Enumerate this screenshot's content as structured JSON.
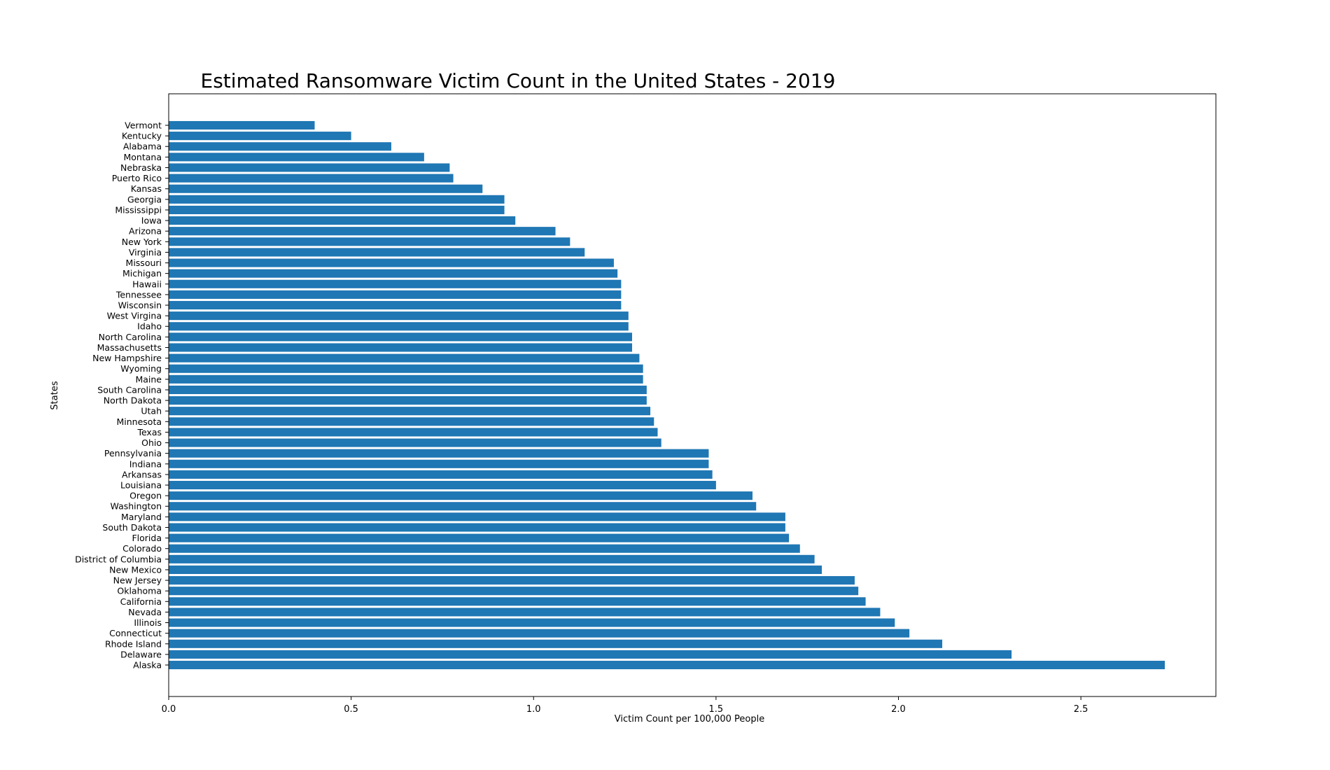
{
  "colors": {
    "bar": "#1f77b4",
    "axes": "#000000",
    "background": "#ffffff"
  },
  "chart_data": {
    "type": "bar",
    "orientation": "horizontal",
    "title": "Estimated Ransomware Victim Count in the United States - 2019",
    "xlabel": "Victim Count per 100,000 People",
    "ylabel": "States",
    "xlim": [
      0,
      2.87
    ],
    "xticks": [
      0.0,
      0.5,
      1.0,
      1.5,
      2.0,
      2.5
    ],
    "xtick_labels": [
      "0.0",
      "0.5",
      "1.0",
      "1.5",
      "2.0",
      "2.5"
    ],
    "grid": false,
    "legend": "none",
    "categories": [
      "Vermont",
      "Kentucky",
      "Alabama",
      "Montana",
      "Nebraska",
      "Puerto Rico",
      "Kansas",
      "Georgia",
      "Mississippi",
      "Iowa",
      "Arizona",
      "New York",
      "Virginia",
      "Missouri",
      "Michigan",
      "Hawaii",
      "Tennessee",
      "Wisconsin",
      "West Virgina",
      "Idaho",
      "North Carolina",
      "Massachusetts",
      "New Hampshire",
      "Wyoming",
      "Maine",
      "South Carolina",
      "North Dakota",
      "Utah",
      "Minnesota",
      "Texas",
      "Ohio",
      "Pennsylvania",
      "Indiana",
      "Arkansas",
      "Louisiana",
      "Oregon",
      "Washington",
      "Maryland",
      "South Dakota",
      "Florida",
      "Colorado",
      "District of Columbia",
      "New Mexico",
      "New Jersey",
      "Oklahoma",
      "California",
      "Nevada",
      "Illinois",
      "Connecticut",
      "Rhode Island",
      "Delaware",
      "Alaska"
    ],
    "values": [
      0.4,
      0.5,
      0.61,
      0.7,
      0.77,
      0.78,
      0.86,
      0.92,
      0.92,
      0.95,
      1.06,
      1.1,
      1.14,
      1.22,
      1.23,
      1.24,
      1.24,
      1.24,
      1.26,
      1.26,
      1.27,
      1.27,
      1.29,
      1.3,
      1.3,
      1.31,
      1.31,
      1.32,
      1.33,
      1.34,
      1.35,
      1.48,
      1.48,
      1.49,
      1.5,
      1.6,
      1.61,
      1.69,
      1.69,
      1.7,
      1.73,
      1.77,
      1.79,
      1.88,
      1.89,
      1.91,
      1.95,
      1.99,
      2.03,
      2.12,
      2.31,
      2.73
    ]
  }
}
